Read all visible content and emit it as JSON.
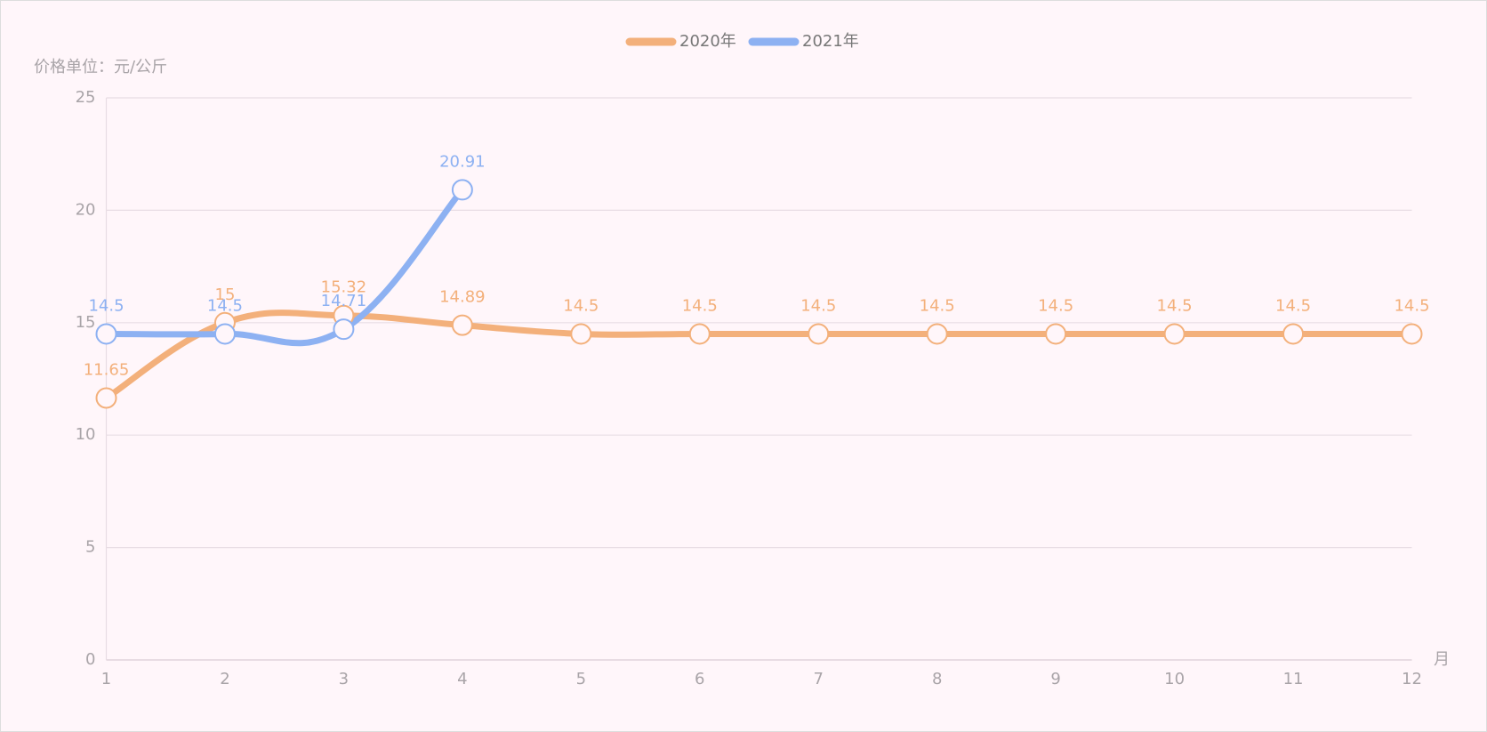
{
  "chart_data": {
    "type": "line",
    "y_axis_label": "价格单位：元/公斤",
    "x_axis_label": "月",
    "categories": [
      "1",
      "2",
      "3",
      "4",
      "5",
      "6",
      "7",
      "8",
      "9",
      "10",
      "11",
      "12"
    ],
    "series": [
      {
        "name": "2020年",
        "color": "#f3b07b",
        "values": [
          11.65,
          15,
          15.32,
          14.89,
          14.5,
          14.5,
          14.5,
          14.5,
          14.5,
          14.5,
          14.5,
          14.5
        ]
      },
      {
        "name": "2021年",
        "color": "#8db1f2",
        "values": [
          14.5,
          14.5,
          14.71,
          20.91,
          null,
          null,
          null,
          null,
          null,
          null,
          null,
          null
        ]
      }
    ],
    "ylim": [
      0,
      25
    ],
    "yticks": [
      0,
      5,
      10,
      15,
      20,
      25
    ],
    "grid": true,
    "smooth": true,
    "legend": "top"
  }
}
